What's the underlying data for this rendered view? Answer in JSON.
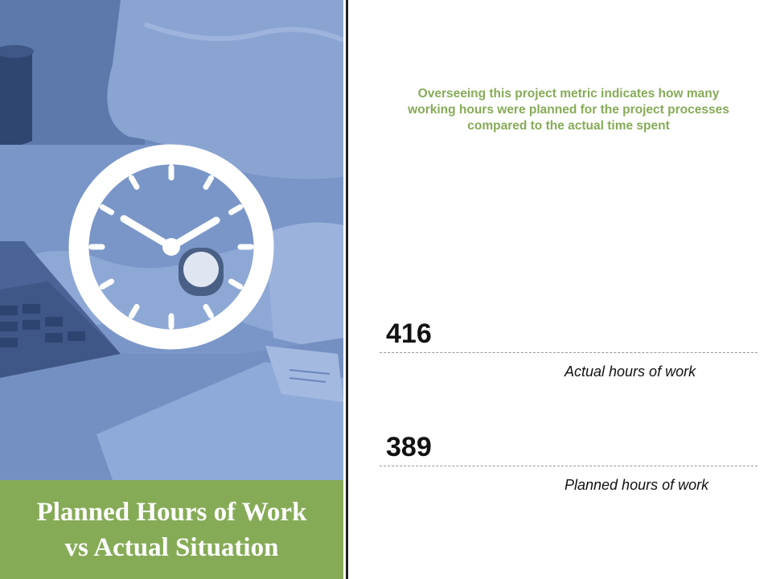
{
  "slide": {
    "title_lines": [
      "Planned Hours of Work",
      "vs Actual Situation"
    ],
    "description": "Overseeing this project metric indicates how many working hours were planned for the project processes compared to the actual time spent",
    "metrics": [
      {
        "value": "416",
        "label": "Actual hours of work"
      },
      {
        "value": "389",
        "label": "Planned hours of work"
      }
    ]
  },
  "icons": {
    "clock": "clock-icon"
  },
  "colors": {
    "accent_green": "#86ab57",
    "photo_overlay_blue": "#6f8bbf",
    "divider": "#1f1f1f",
    "text_dark": "#111111"
  }
}
